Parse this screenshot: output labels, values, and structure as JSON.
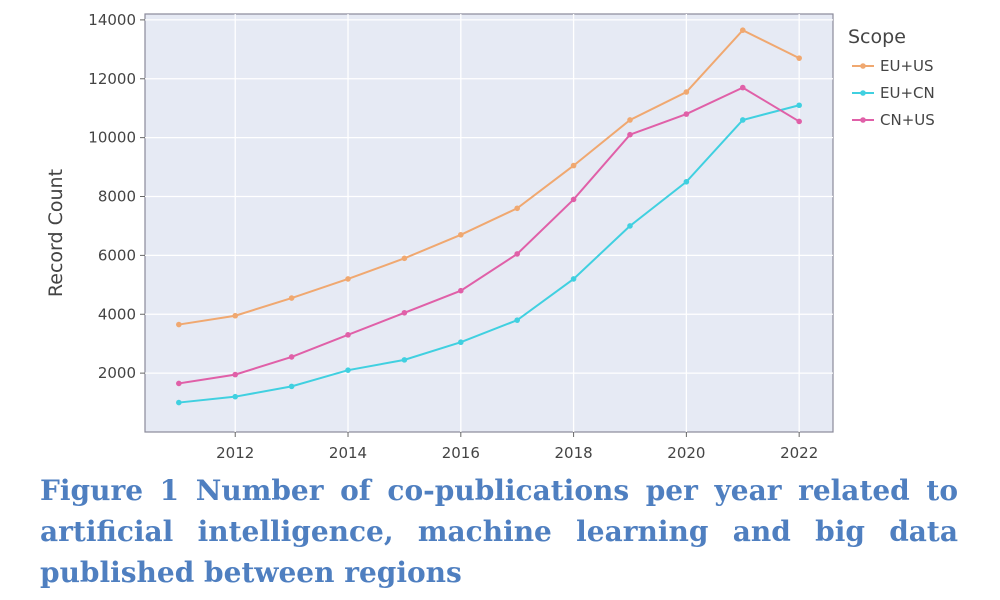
{
  "caption": "Figure 1 Number of co-publications per year related to artificial intelligence, machine learning and big data published between regions",
  "chart_data": {
    "type": "line",
    "title": "",
    "xlabel": "",
    "ylabel": "Record Count",
    "legend_title": "Scope",
    "legend_position": "right",
    "grid": true,
    "xlim": [
      2010.4,
      2022.6
    ],
    "ylim": [
      0,
      14200
    ],
    "x": [
      2011,
      2012,
      2013,
      2014,
      2015,
      2016,
      2017,
      2018,
      2019,
      2020,
      2021,
      2022
    ],
    "x_ticks": [
      2012,
      2014,
      2016,
      2018,
      2020,
      2022
    ],
    "y_ticks": [
      2000,
      4000,
      6000,
      8000,
      10000,
      12000,
      14000
    ],
    "series": [
      {
        "name": "EU+US",
        "color": "#f0a870",
        "values": [
          3650,
          3950,
          4550,
          5200,
          5900,
          6700,
          7600,
          9050,
          10600,
          11550,
          13650,
          12700
        ]
      },
      {
        "name": "EU+CN",
        "color": "#40d0e0",
        "values": [
          1000,
          1200,
          1550,
          2100,
          2450,
          3050,
          3800,
          5200,
          7000,
          8500,
          10600,
          11100
        ]
      },
      {
        "name": "CN+US",
        "color": "#e060a8",
        "values": [
          1650,
          1950,
          2550,
          3300,
          4050,
          4800,
          6050,
          7900,
          10100,
          10800,
          11700,
          10550
        ]
      }
    ]
  }
}
